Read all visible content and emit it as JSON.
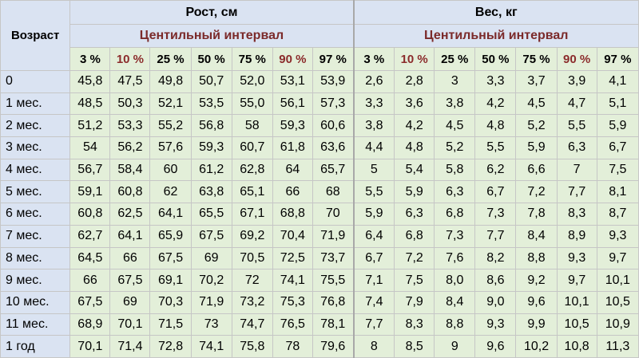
{
  "header": {
    "age_label": "Возраст",
    "height_title": "Рост, см",
    "weight_title": "Вес, кг",
    "centile_label": "Центильный интервал",
    "percentiles": [
      "3 %",
      "10 %",
      "25 %",
      "50 %",
      "75 %",
      "90 %",
      "97 %"
    ]
  },
  "rows": [
    {
      "age": "0",
      "height": [
        "45,8",
        "47,5",
        "49,8",
        "50,7",
        "52,0",
        "53,1",
        "53,9"
      ],
      "weight": [
        "2,6",
        "2,8",
        "3",
        "3,3",
        "3,7",
        "3,9",
        "4,1"
      ]
    },
    {
      "age": "1 мес.",
      "height": [
        "48,5",
        "50,3",
        "52,1",
        "53,5",
        "55,0",
        "56,1",
        "57,3"
      ],
      "weight": [
        "3,3",
        "3,6",
        "3,8",
        "4,2",
        "4,5",
        "4,7",
        "5,1"
      ]
    },
    {
      "age": "2 мес.",
      "height": [
        "51,2",
        "53,3",
        "55,2",
        "56,8",
        "58",
        "59,3",
        "60,6"
      ],
      "weight": [
        "3,8",
        "4,2",
        "4,5",
        "4,8",
        "5,2",
        "5,5",
        "5,9"
      ]
    },
    {
      "age": "3 мес.",
      "height": [
        "54",
        "56,2",
        "57,6",
        "59,3",
        "60,7",
        "61,8",
        "63,6"
      ],
      "weight": [
        "4,4",
        "4,8",
        "5,2",
        "5,5",
        "5,9",
        "6,3",
        "6,7"
      ]
    },
    {
      "age": "4 мес.",
      "height": [
        "56,7",
        "58,4",
        "60",
        "61,2",
        "62,8",
        "64",
        "65,7"
      ],
      "weight": [
        "5",
        "5,4",
        "5,8",
        "6,2",
        "6,6",
        "7",
        "7,5"
      ]
    },
    {
      "age": "5 мес.",
      "height": [
        "59,1",
        "60,8",
        "62",
        "63,8",
        "65,1",
        "66",
        "68"
      ],
      "weight": [
        "5,5",
        "5,9",
        "6,3",
        "6,7",
        "7,2",
        "7,7",
        "8,1"
      ]
    },
    {
      "age": "6 мес.",
      "height": [
        "60,8",
        "62,5",
        "64,1",
        "65,5",
        "67,1",
        "68,8",
        "70"
      ],
      "weight": [
        "5,9",
        "6,3",
        "6,8",
        "7,3",
        "7,8",
        "8,3",
        "8,7"
      ]
    },
    {
      "age": "7 мес.",
      "height": [
        "62,7",
        "64,1",
        "65,9",
        "67,5",
        "69,2",
        "70,4",
        "71,9"
      ],
      "weight": [
        "6,4",
        "6,8",
        "7,3",
        "7,7",
        "8,4",
        "8,9",
        "9,3"
      ]
    },
    {
      "age": "8 мес.",
      "height": [
        "64,5",
        "66",
        "67,5",
        "69",
        "70,5",
        "72,5",
        "73,7"
      ],
      "weight": [
        "6,7",
        "7,2",
        "7,6",
        "8,2",
        "8,8",
        "9,3",
        "9,7"
      ]
    },
    {
      "age": "9 мес.",
      "height": [
        "66",
        "67,5",
        "69,1",
        "70,2",
        "72",
        "74,1",
        "75,5"
      ],
      "weight": [
        "7,1",
        "7,5",
        "8,0",
        "8,6",
        "9,2",
        "9,7",
        "10,1"
      ]
    },
    {
      "age": "10 мес.",
      "height": [
        "67,5",
        "69",
        "70,3",
        "71,9",
        "73,2",
        "75,3",
        "76,8"
      ],
      "weight": [
        "7,4",
        "7,9",
        "8,4",
        "9,0",
        "9,6",
        "10,1",
        "10,5"
      ]
    },
    {
      "age": "11 мес.",
      "height": [
        "68,9",
        "70,1",
        "71,5",
        "73",
        "74,7",
        "76,5",
        "78,1"
      ],
      "weight": [
        "7,7",
        "8,3",
        "8,8",
        "9,3",
        "9,9",
        "10,5",
        "10,9"
      ]
    },
    {
      "age": "1 год",
      "height": [
        "70,1",
        "71,4",
        "72,8",
        "74,1",
        "75,8",
        "78",
        "79,6"
      ],
      "weight": [
        "8",
        "8,5",
        "9",
        "9,6",
        "10,2",
        "10,8",
        "11,3"
      ]
    }
  ],
  "colors": {
    "header_blue": "#dae3f2",
    "cell_green": "#e3efd9",
    "centile_text": "#7b2a2a"
  }
}
